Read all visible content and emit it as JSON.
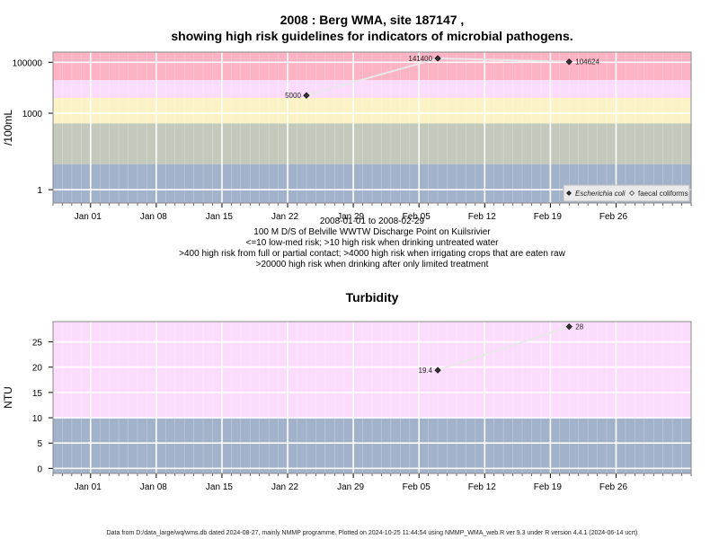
{
  "chart_data": [
    {
      "type": "line",
      "title_line1": "2008 : Berg WMA, site 187147 ,",
      "title_line2": "showing high risk guidelines for indicators of microbial pathogens.",
      "ylabel": "/100mL",
      "yscale": "log",
      "ylim": [
        0.3,
        250000
      ],
      "y_ticks": [
        1,
        1000,
        100000
      ],
      "y_tick_labels": [
        "1",
        "1000",
        "100000"
      ],
      "xlim": [
        "2007-12-28",
        "2008-03-05"
      ],
      "x_ticks": [
        "2008-01-01",
        "2008-01-08",
        "2008-01-15",
        "2008-01-22",
        "2008-01-29",
        "2008-02-05",
        "2008-02-12",
        "2008-02-19",
        "2008-02-26"
      ],
      "x_tick_labels": [
        "Jan 01",
        "Jan 08",
        "Jan 15",
        "Jan 22",
        "Jan 29",
        "Feb 05",
        "Feb 12",
        "Feb 19",
        "Feb 26"
      ],
      "bands": [
        {
          "from": 0.3,
          "to": 10,
          "color": "#a2b2cb"
        },
        {
          "from": 10,
          "to": 400,
          "color": "#c3c9bb"
        },
        {
          "from": 400,
          "to": 4000,
          "color": "#fbf3c6"
        },
        {
          "from": 4000,
          "to": 20000,
          "color": "#fcdcfc"
        },
        {
          "from": 20000,
          "to": 250000,
          "color": "#fdb3c3"
        }
      ],
      "series": [
        {
          "name": "Escherichia coli",
          "marker": "filled",
          "color": "#000000",
          "points": [
            {
              "x": "2008-01-24",
              "y": 5000,
              "label": "5000"
            },
            {
              "x": "2008-02-07",
              "y": 141400,
              "label": "141400"
            },
            {
              "x": "2008-02-21",
              "y": 104624,
              "label": "104624"
            }
          ]
        }
      ],
      "legend": {
        "position": "bottom-right",
        "items": [
          {
            "label": "Escherichia coli",
            "marker": "filled",
            "italic": true
          },
          {
            "label": "faecal coliforms",
            "marker": "open",
            "italic": false
          }
        ]
      },
      "subtitle_lines": [
        "2008-01-01 to 2008-02-29",
        "100 M D/S of Belville WWTW Discharge Point on Kuilsrivier",
        "<=10 low-med risk; >10 high risk when drinking untreated water",
        ">400 high risk from full or partial contact; >4000 high risk when irrigating crops that are eaten raw",
        ">20000 high risk when drinking after only limited treatment"
      ]
    },
    {
      "type": "line",
      "title": "Turbidity",
      "ylabel": "NTU",
      "ylim": [
        -1,
        29
      ],
      "y_ticks": [
        0,
        5,
        10,
        15,
        20,
        25
      ],
      "y_tick_labels": [
        "0",
        "5",
        "10",
        "15",
        "20",
        "25"
      ],
      "xlim": [
        "2007-12-28",
        "2008-03-05"
      ],
      "x_ticks": [
        "2008-01-01",
        "2008-01-08",
        "2008-01-15",
        "2008-01-22",
        "2008-01-29",
        "2008-02-05",
        "2008-02-12",
        "2008-02-19",
        "2008-02-26"
      ],
      "x_tick_labels": [
        "Jan 01",
        "Jan 08",
        "Jan 15",
        "Jan 22",
        "Jan 29",
        "Feb 05",
        "Feb 12",
        "Feb 19",
        "Feb 26"
      ],
      "bands": [
        {
          "from": -1,
          "to": 10,
          "color": "#a2b2cb"
        },
        {
          "from": 10,
          "to": 29,
          "color": "#fcdcfc"
        }
      ],
      "series": [
        {
          "name": "",
          "marker": "filled",
          "color": "#000000",
          "points": [
            {
              "x": "2008-02-07",
              "y": 19.4,
              "label": "19.4"
            },
            {
              "x": "2008-02-21",
              "y": 28,
              "label": "28"
            }
          ]
        }
      ]
    }
  ],
  "footer": "Data from D:/data_large/wq/wms.db dated 2024-08-27, mainly NMMP programme. Plotted on 2024-10-25 11:44:54 using NMMP_WMA_web.R ver 9.3 under R version 4.4.1 (2024-06-14 ucrt)"
}
